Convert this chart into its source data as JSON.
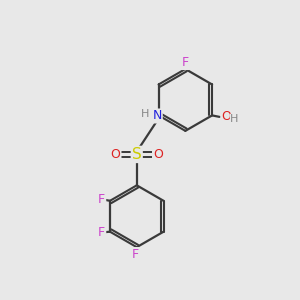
{
  "background_color": "#e8e8e8",
  "bond_color": "#3a3a3a",
  "atom_colors": {
    "F": "#cc44cc",
    "N": "#2222dd",
    "H": "#888888",
    "S": "#cccc00",
    "O": "#dd2222",
    "C": "#3a3a3a"
  },
  "figsize": [
    3.0,
    3.0
  ],
  "dpi": 100
}
